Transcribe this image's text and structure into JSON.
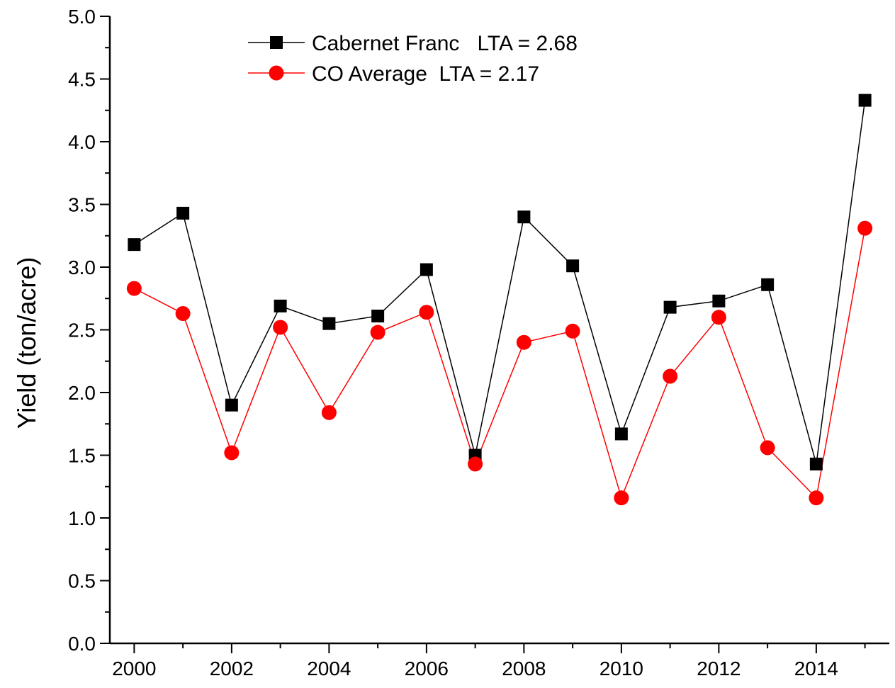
{
  "chart_data": {
    "type": "line",
    "title": "",
    "xlabel": "",
    "ylabel": "Yield (ton/acre)",
    "xlim": [
      1999.5,
      2015.5
    ],
    "ylim": [
      0,
      5
    ],
    "x_ticks": [
      "2000",
      "2002",
      "2004",
      "2006",
      "2008",
      "2010",
      "2012",
      "2014"
    ],
    "y_ticks": [
      "0.0",
      "0.5",
      "1.0",
      "1.5",
      "2.0",
      "2.5",
      "3.0",
      "3.5",
      "4.0",
      "4.5",
      "5.0"
    ],
    "grid": false,
    "legend_position": "top-left",
    "x": [
      2000,
      2001,
      2002,
      2003,
      2004,
      2005,
      2006,
      2007,
      2008,
      2009,
      2010,
      2011,
      2012,
      2013,
      2014,
      2015
    ],
    "series": [
      {
        "name": "Cabernet Franc   LTA = 2.68",
        "marker": "square",
        "color": "#000000",
        "values": [
          3.18,
          3.43,
          1.9,
          2.69,
          2.55,
          2.61,
          2.98,
          1.5,
          3.4,
          3.01,
          1.67,
          2.68,
          2.73,
          2.86,
          1.43,
          4.33
        ]
      },
      {
        "name": "CO Average  LTA = 2.17",
        "marker": "circle",
        "color": "#ff0000",
        "values": [
          2.83,
          2.63,
          1.52,
          2.52,
          1.84,
          2.48,
          2.64,
          1.43,
          2.4,
          2.49,
          1.16,
          2.13,
          2.6,
          1.56,
          1.16,
          3.31
        ]
      }
    ]
  }
}
